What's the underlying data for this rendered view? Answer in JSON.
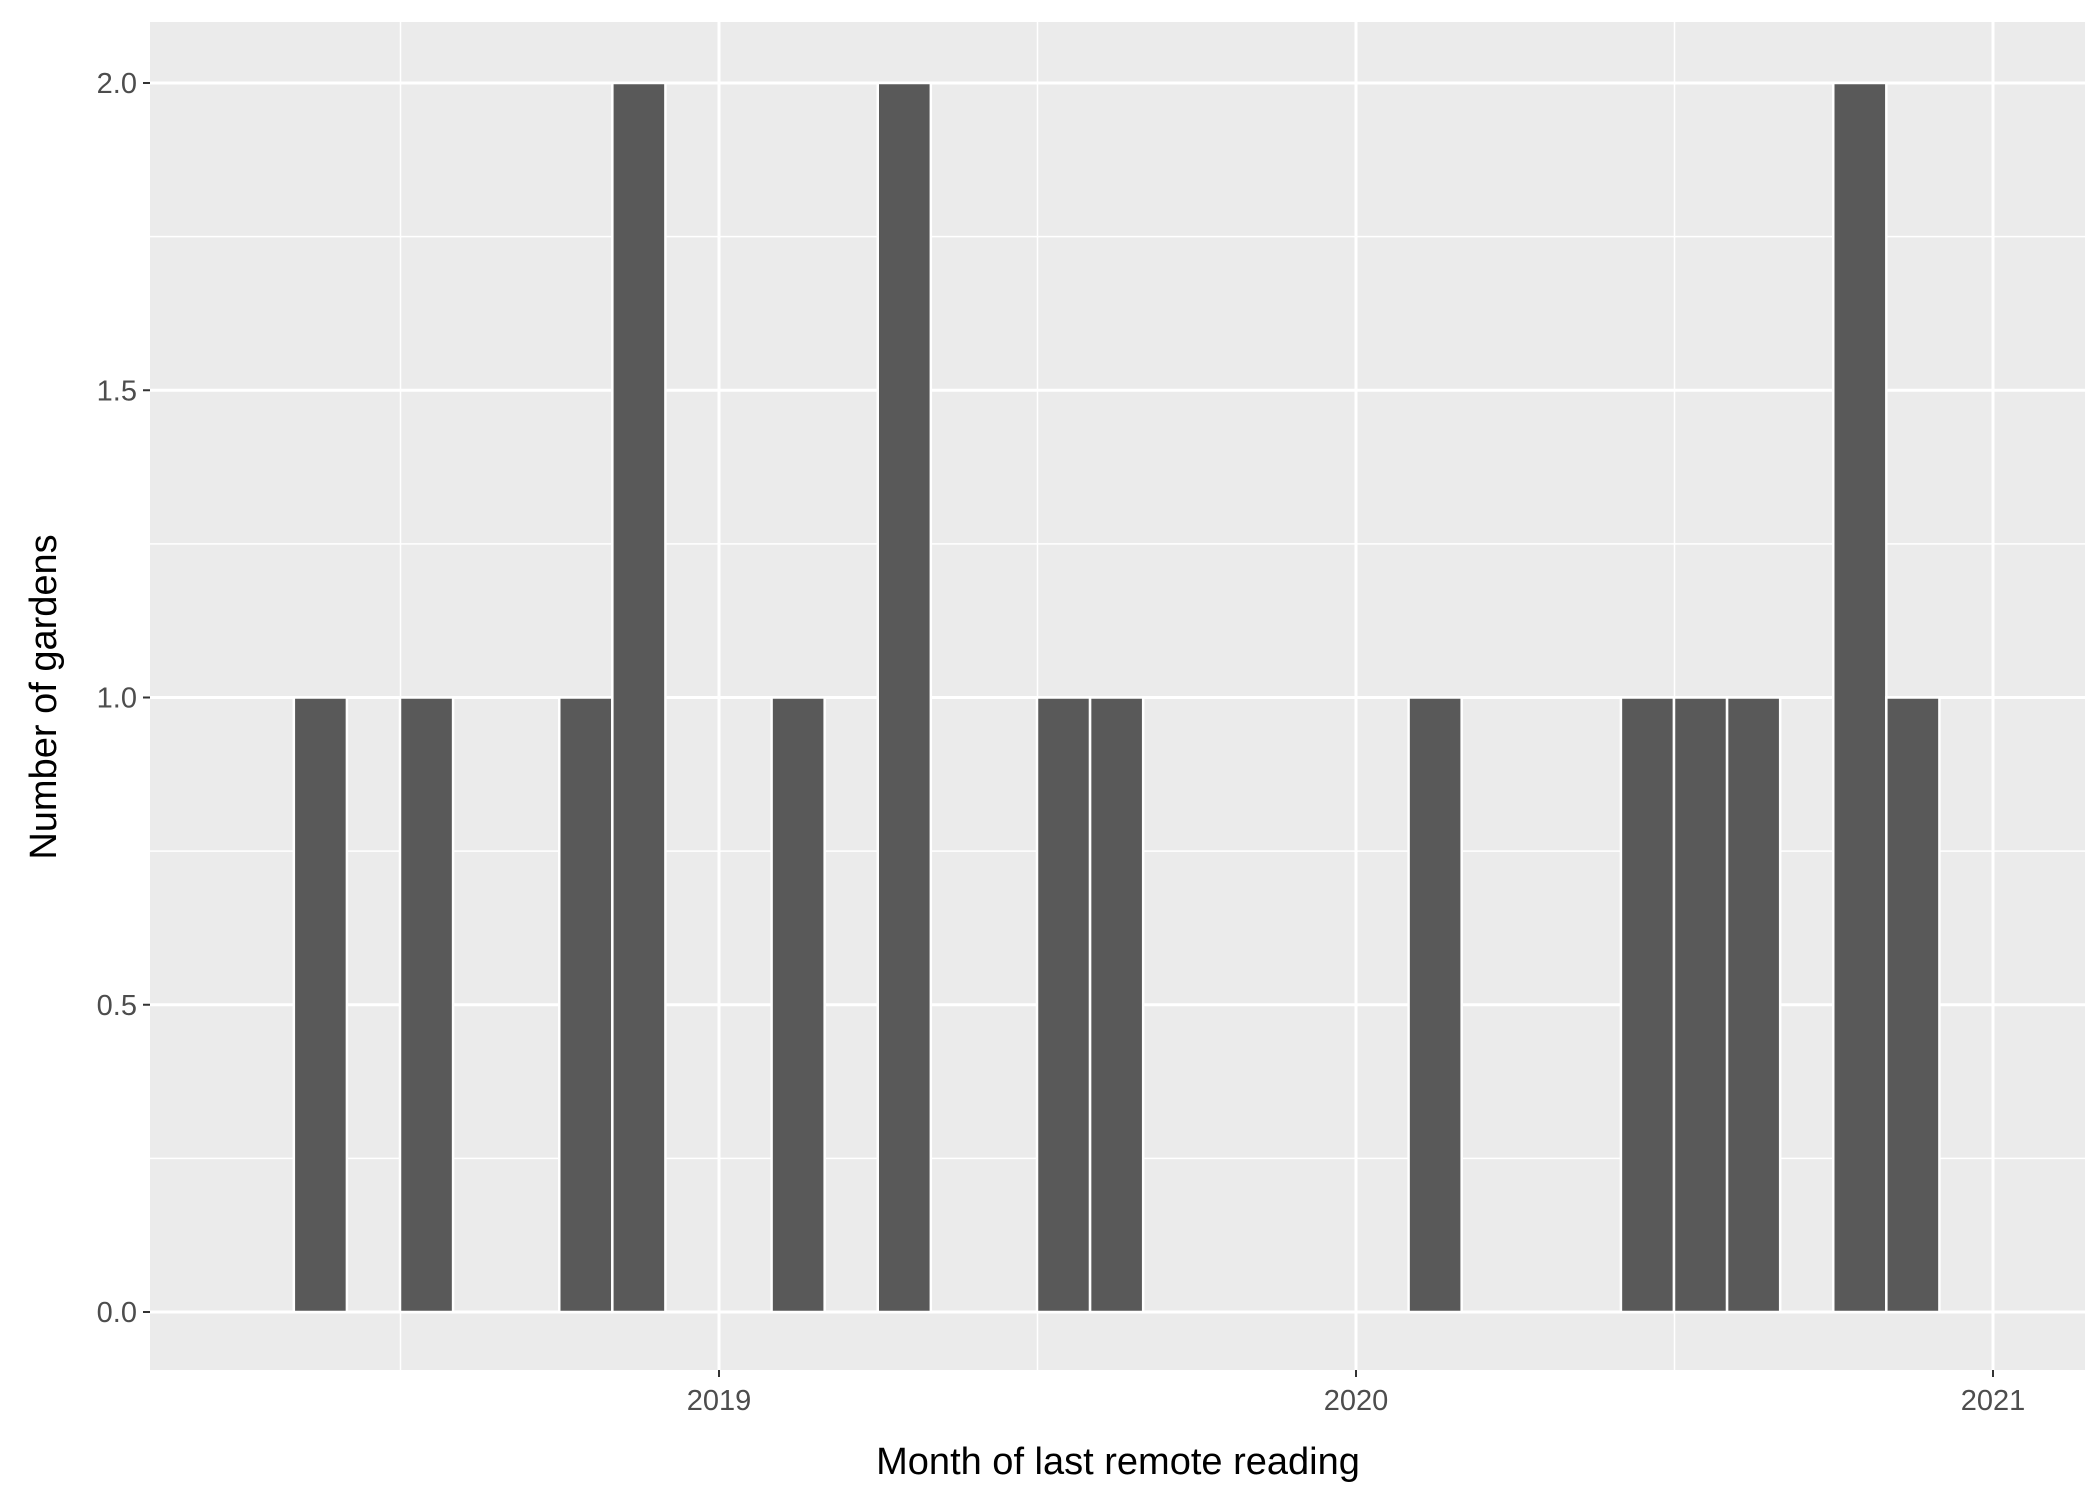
{
  "chart_data": {
    "type": "bar",
    "xlabel": "Month of last remote reading",
    "ylabel": "Number of gardens",
    "x_tick_labels": [
      "2019",
      "2020",
      "2021"
    ],
    "y_tick_labels": [
      "0.0",
      "0.5",
      "1.0",
      "1.5",
      "2.0"
    ],
    "x": [
      "2018-05",
      "2018-07",
      "2018-10",
      "2018-11",
      "2019-02",
      "2019-04",
      "2019-07",
      "2019-08",
      "2020-02",
      "2020-06",
      "2020-07",
      "2020-08",
      "2020-10",
      "2020-11"
    ],
    "values": [
      1,
      1,
      1,
      2,
      1,
      2,
      1,
      1,
      1,
      1,
      1,
      1,
      2,
      1
    ],
    "ylim": [
      0,
      2
    ],
    "grid": true,
    "bar_color": "#595959",
    "panel_background": "#ebebeb",
    "grid_color": "#ffffff"
  }
}
